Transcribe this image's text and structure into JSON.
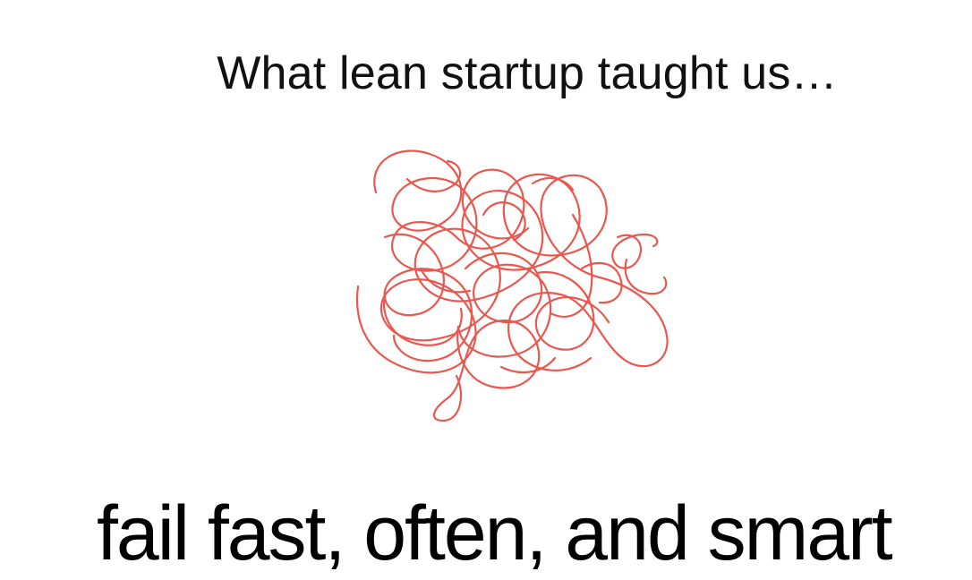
{
  "slide": {
    "title": "What lean startup taught us…",
    "tagline": "fail fast, often, and smart",
    "scribble_icon": "tangled-scribble-icon",
    "scribble_color": "#e8584f"
  }
}
